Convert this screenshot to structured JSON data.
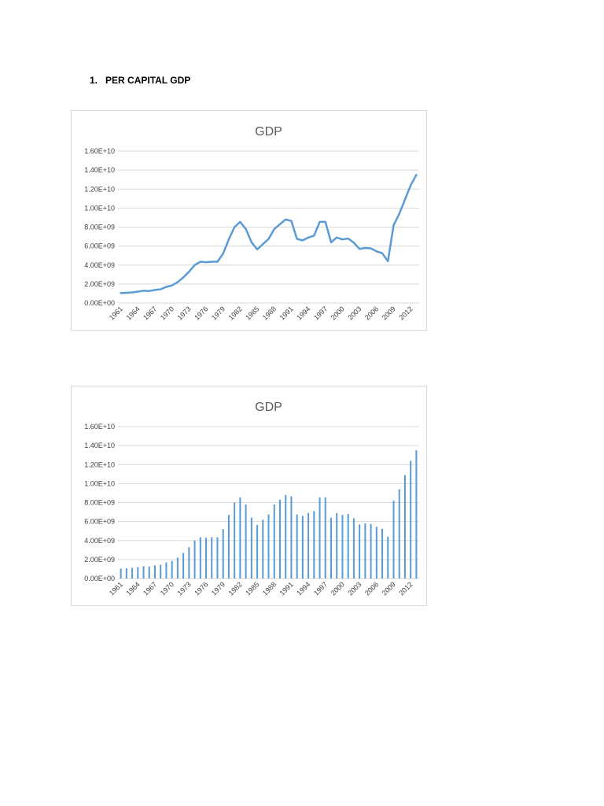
{
  "heading": {
    "number": "1.",
    "text": "PER CAPITAL GDP"
  },
  "colors": {
    "series": "#5b9bd5",
    "grid": "#d9d9d9",
    "text": "#595959"
  },
  "chart_data": [
    {
      "type": "line",
      "title": "GDP",
      "xlabel": "",
      "ylabel": "",
      "ylim": [
        0,
        16000000000
      ],
      "y_ticks": [
        "0.00E+00",
        "2.00E+09",
        "4.00E+09",
        "6.00E+09",
        "8.00E+09",
        "1.00E+10",
        "1.20E+10",
        "1.40E+10",
        "1.60E+10"
      ],
      "x_tick_labels": [
        "1961",
        "1964",
        "1967",
        "1970",
        "1973",
        "1976",
        "1979",
        "1982",
        "1985",
        "1988",
        "1991",
        "1994",
        "1997",
        "2000",
        "2003",
        "2006",
        "2009",
        "2012"
      ],
      "grid": true,
      "legend": "none",
      "series": [
        {
          "x": [
            1961,
            1962,
            1963,
            1964,
            1965,
            1966,
            1967,
            1968,
            1969,
            1970,
            1971,
            1972,
            1973,
            1974,
            1975,
            1976,
            1977,
            1978,
            1979,
            1980,
            1981,
            1982,
            1983,
            1984,
            1985,
            1986,
            1987,
            1988,
            1989,
            1990,
            1991,
            1992,
            1993,
            1994,
            1995,
            1996,
            1997,
            1998,
            1999,
            2000,
            2001,
            2002,
            2003,
            2004,
            2005,
            2006,
            2007,
            2008,
            2009,
            2010,
            2011,
            2012,
            2013
          ],
          "values": [
            1050000000.0,
            1080000000.0,
            1120000000.0,
            1200000000.0,
            1300000000.0,
            1270000000.0,
            1380000000.0,
            1450000000.0,
            1700000000.0,
            1850000000.0,
            2200000000.0,
            2700000000.0,
            3300000000.0,
            4000000000.0,
            4350000000.0,
            4300000000.0,
            4350000000.0,
            4350000000.0,
            5200000000.0,
            6700000000.0,
            8000000000.0,
            8550000000.0,
            7800000000.0,
            6400000000.0,
            5650000000.0,
            6200000000.0,
            6750000000.0,
            7800000000.0,
            8300000000.0,
            8800000000.0,
            8650000000.0,
            6750000000.0,
            6600000000.0,
            6900000000.0,
            7100000000.0,
            8550000000.0,
            8550000000.0,
            6400000000.0,
            6900000000.0,
            6700000000.0,
            6800000000.0,
            6350000000.0,
            5700000000.0,
            5800000000.0,
            5750000000.0,
            5450000000.0,
            5250000000.0,
            4400000000.0,
            8200000000.0,
            9400000000.0,
            10900000000.0,
            12400000000.0,
            13500000000.0
          ]
        }
      ]
    },
    {
      "type": "bar",
      "title": "GDP",
      "xlabel": "",
      "ylabel": "",
      "ylim": [
        0,
        16000000000
      ],
      "y_ticks": [
        "0.00E+00",
        "2.00E+09",
        "4.00E+09",
        "6.00E+09",
        "8.00E+09",
        "1.00E+10",
        "1.20E+10",
        "1.40E+10",
        "1.60E+10"
      ],
      "x_tick_labels": [
        "1961",
        "1964",
        "1967",
        "1970",
        "1973",
        "1976",
        "1979",
        "1982",
        "1985",
        "1988",
        "1991",
        "1994",
        "1997",
        "2000",
        "2003",
        "2006",
        "2009",
        "2012"
      ],
      "grid": true,
      "legend": "none",
      "series": [
        {
          "x": [
            1961,
            1962,
            1963,
            1964,
            1965,
            1966,
            1967,
            1968,
            1969,
            1970,
            1971,
            1972,
            1973,
            1974,
            1975,
            1976,
            1977,
            1978,
            1979,
            1980,
            1981,
            1982,
            1983,
            1984,
            1985,
            1986,
            1987,
            1988,
            1989,
            1990,
            1991,
            1992,
            1993,
            1994,
            1995,
            1996,
            1997,
            1998,
            1999,
            2000,
            2001,
            2002,
            2003,
            2004,
            2005,
            2006,
            2007,
            2008,
            2009,
            2010,
            2011,
            2012,
            2013
          ],
          "values": [
            1050000000.0,
            1080000000.0,
            1120000000.0,
            1200000000.0,
            1300000000.0,
            1270000000.0,
            1380000000.0,
            1450000000.0,
            1700000000.0,
            1850000000.0,
            2200000000.0,
            2700000000.0,
            3300000000.0,
            4000000000.0,
            4350000000.0,
            4300000000.0,
            4350000000.0,
            4350000000.0,
            5200000000.0,
            6700000000.0,
            8000000000.0,
            8550000000.0,
            7800000000.0,
            6400000000.0,
            5650000000.0,
            6200000000.0,
            6750000000.0,
            7800000000.0,
            8300000000.0,
            8800000000.0,
            8650000000.0,
            6750000000.0,
            6600000000.0,
            6900000000.0,
            7100000000.0,
            8550000000.0,
            8550000000.0,
            6400000000.0,
            6900000000.0,
            6700000000.0,
            6800000000.0,
            6350000000.0,
            5700000000.0,
            5800000000.0,
            5750000000.0,
            5450000000.0,
            5250000000.0,
            4400000000.0,
            8200000000.0,
            9400000000.0,
            10900000000.0,
            12400000000.0,
            13500000000.0
          ]
        }
      ]
    }
  ]
}
